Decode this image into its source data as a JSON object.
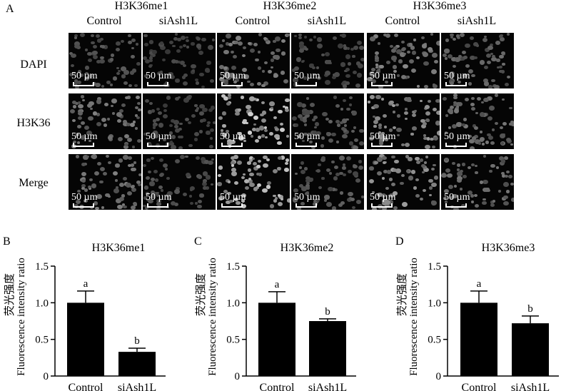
{
  "panel_letters": [
    "A",
    "B",
    "C",
    "D"
  ],
  "groups": [
    {
      "title": "H3K36me1"
    },
    {
      "title": "H3K36me2"
    },
    {
      "title": "H3K36me3"
    }
  ],
  "conditions": [
    "Control",
    "siAsh1L"
  ],
  "rows": [
    "DAPI",
    "H3K36",
    "Merge"
  ],
  "scale_bar": "50 µm",
  "colors": {
    "bar": "#000000",
    "cell_bright": "#d8d8d8",
    "background": "#050505"
  },
  "chart_data": [
    {
      "type": "bar",
      "title": "H3K36me1",
      "categories": [
        "Control",
        "siAsh1L"
      ],
      "values": [
        1.0,
        0.33
      ],
      "errors": [
        0.16,
        0.05
      ],
      "letters": [
        "a",
        "b"
      ],
      "ylabel_cn": "荧光强度",
      "ylabel": "Fluorescence intensity ratio",
      "ylim": [
        0,
        1.5
      ],
      "yticks": [
        "0",
        "0.5",
        "1.0",
        "1.5"
      ]
    },
    {
      "type": "bar",
      "title": "H3K36me2",
      "categories": [
        "Control",
        "siAsh1L"
      ],
      "values": [
        1.0,
        0.75
      ],
      "errors": [
        0.15,
        0.03
      ],
      "letters": [
        "a",
        "b"
      ],
      "ylabel_cn": "荧光强度",
      "ylabel": "Fluorescence intensity ratio",
      "ylim": [
        0,
        1.5
      ],
      "yticks": [
        "0",
        "0.5",
        "1.0",
        "1.5"
      ]
    },
    {
      "type": "bar",
      "title": "H3K36me3",
      "categories": [
        "Control",
        "siAsh1L"
      ],
      "values": [
        1.0,
        0.72
      ],
      "errors": [
        0.16,
        0.1
      ],
      "letters": [
        "a",
        "b"
      ],
      "ylabel_cn": "荧光强度",
      "ylabel": "Fluorescence intensity ratio",
      "ylim": [
        0,
        1.5
      ],
      "yticks": [
        "0",
        "0.5",
        "1.0",
        "1.5"
      ]
    }
  ]
}
